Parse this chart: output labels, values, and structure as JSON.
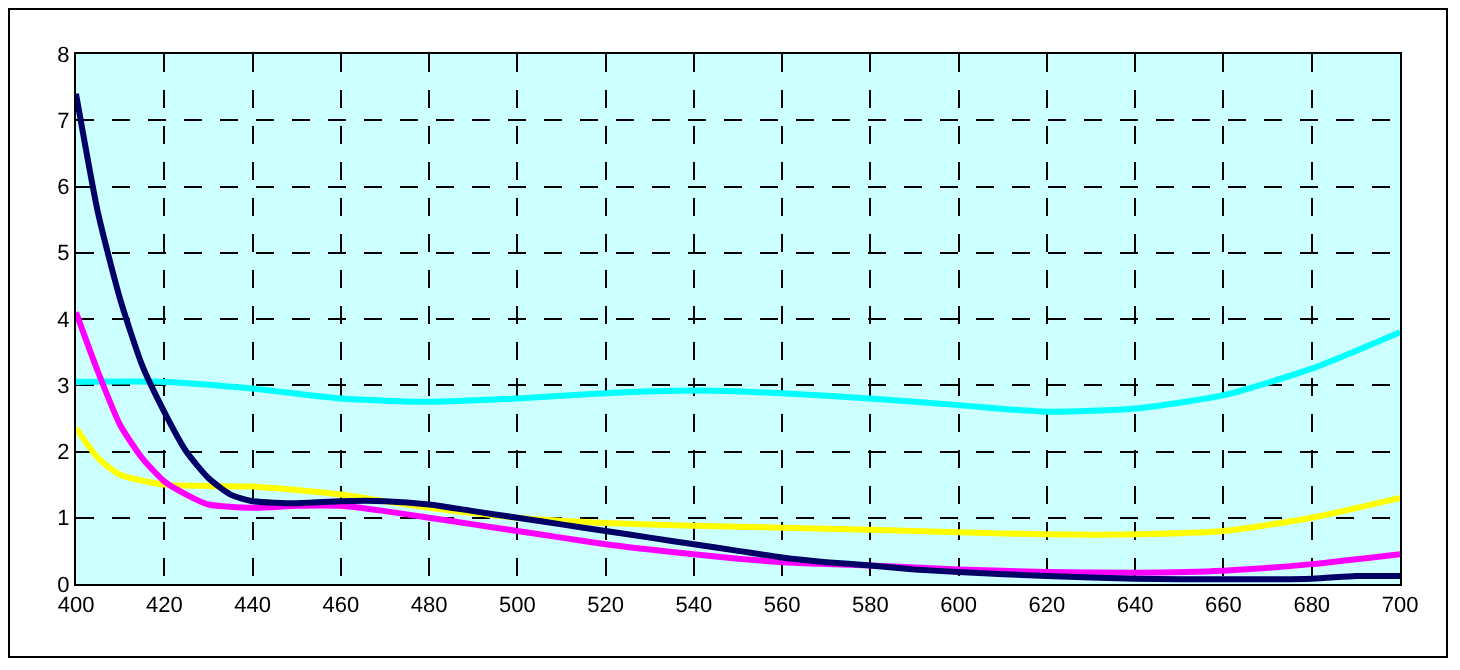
{
  "chart_data": {
    "type": "line",
    "xlim": [
      400,
      700
    ],
    "xticks": [
      400,
      420,
      440,
      460,
      480,
      500,
      520,
      540,
      560,
      580,
      600,
      620,
      640,
      660,
      680,
      700
    ],
    "ylim": [
      0,
      8
    ],
    "yticks": [
      0,
      1,
      2,
      3,
      4,
      5,
      6,
      7,
      8
    ],
    "grid": true,
    "line_style": "solid",
    "marker": "none",
    "series": [
      {
        "color": "#00ffff",
        "x": [
          400,
          420,
          440,
          460,
          480,
          500,
          520,
          540,
          560,
          580,
          600,
          620,
          640,
          660,
          680,
          700
        ],
        "values": [
          3.05,
          3.05,
          2.95,
          2.8,
          2.75,
          2.8,
          2.88,
          2.92,
          2.88,
          2.8,
          2.7,
          2.6,
          2.65,
          2.85,
          3.25,
          3.8
        ]
      },
      {
        "color": "#ffff00",
        "x": [
          400,
          405,
          410,
          420,
          430,
          440,
          450,
          460,
          470,
          480,
          490,
          500,
          520,
          540,
          560,
          580,
          600,
          620,
          640,
          660,
          680,
          700
        ],
        "values": [
          2.35,
          1.9,
          1.65,
          1.5,
          1.48,
          1.47,
          1.42,
          1.35,
          1.25,
          1.15,
          1.07,
          1.0,
          0.92,
          0.88,
          0.85,
          0.82,
          0.78,
          0.75,
          0.75,
          0.8,
          1.0,
          1.3
        ]
      },
      {
        "color": "#ff00ff",
        "x": [
          400,
          405,
          410,
          415,
          420,
          425,
          430,
          440,
          450,
          460,
          470,
          480,
          490,
          500,
          510,
          520,
          530,
          540,
          550,
          560,
          570,
          580,
          600,
          620,
          640,
          660,
          680,
          700
        ],
        "values": [
          4.1,
          3.2,
          2.4,
          1.9,
          1.55,
          1.35,
          1.2,
          1.15,
          1.18,
          1.18,
          1.1,
          1.0,
          0.9,
          0.8,
          0.7,
          0.6,
          0.52,
          0.45,
          0.38,
          0.33,
          0.3,
          0.28,
          0.22,
          0.18,
          0.17,
          0.2,
          0.3,
          0.45
        ]
      },
      {
        "color": "#000066",
        "x": [
          400,
          405,
          410,
          415,
          420,
          425,
          430,
          435,
          440,
          450,
          460,
          470,
          480,
          490,
          500,
          510,
          520,
          530,
          540,
          550,
          560,
          570,
          580,
          590,
          600,
          620,
          640,
          660,
          680,
          690,
          700
        ],
        "values": [
          7.4,
          5.6,
          4.3,
          3.3,
          2.6,
          2.0,
          1.6,
          1.35,
          1.25,
          1.22,
          1.25,
          1.25,
          1.2,
          1.1,
          1.0,
          0.9,
          0.8,
          0.7,
          0.6,
          0.5,
          0.4,
          0.33,
          0.28,
          0.22,
          0.18,
          0.12,
          0.08,
          0.07,
          0.08,
          0.12,
          0.12
        ]
      }
    ]
  }
}
